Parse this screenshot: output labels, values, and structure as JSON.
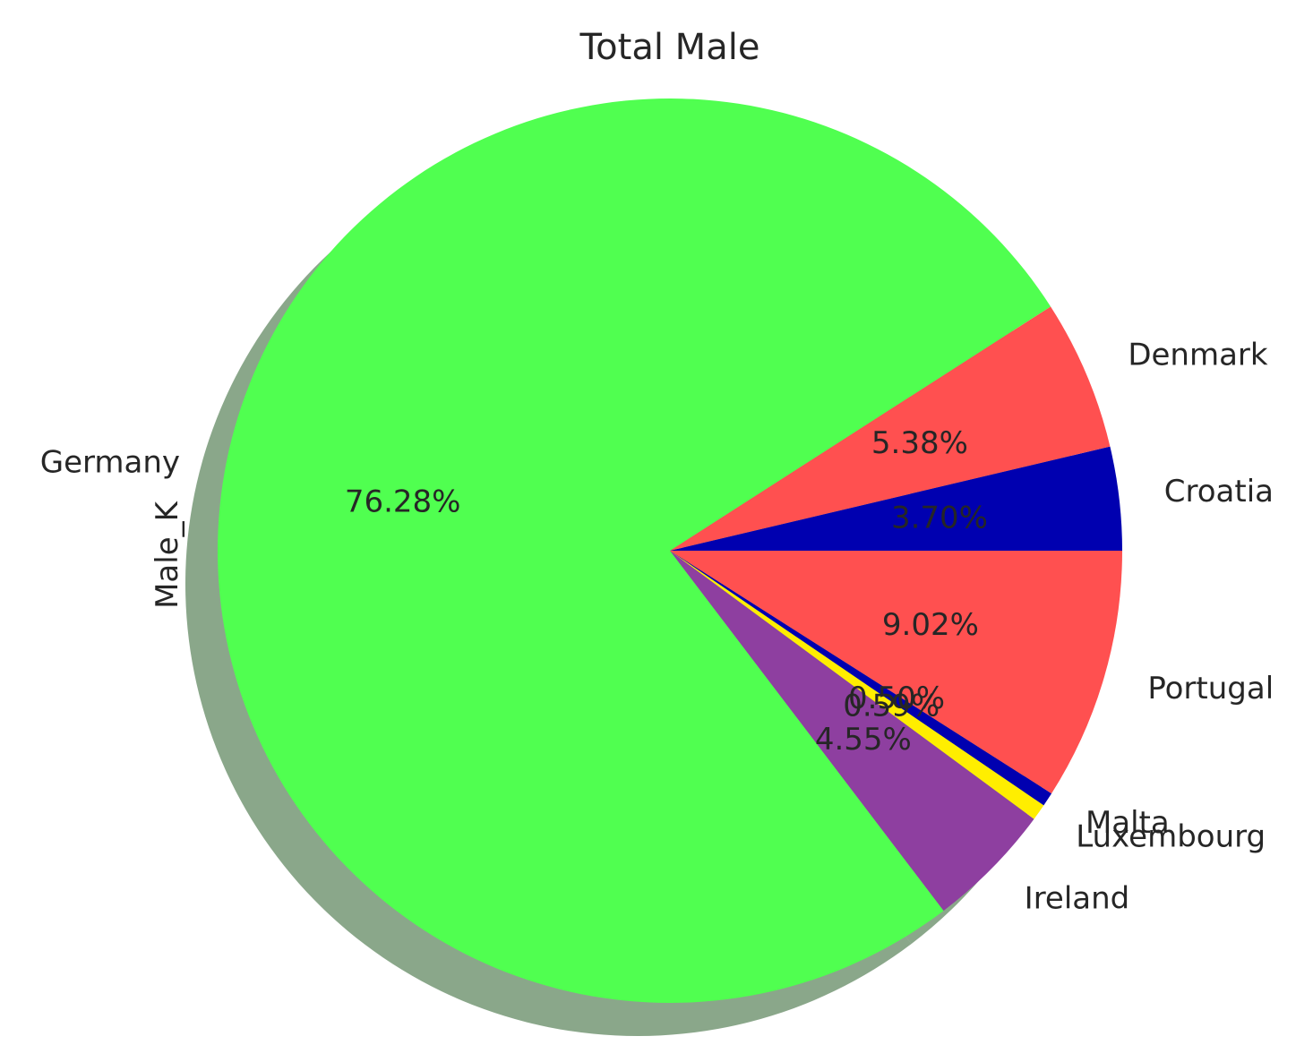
{
  "chart_data": {
    "type": "pie",
    "title": "Total Male",
    "ylabel": "Male_K",
    "startangle_deg": 0,
    "direction": "counterclockwise",
    "shadow": true,
    "slices": [
      {
        "label": "Croatia",
        "percent": 3.7,
        "pct_text": "3.70%",
        "color": "#0000b0"
      },
      {
        "label": "Denmark",
        "percent": 5.38,
        "pct_text": "5.38%",
        "color": "#ff5050"
      },
      {
        "label": "Germany",
        "percent": 76.28,
        "pct_text": "76.28%",
        "color": "#50ff50"
      },
      {
        "label": "Ireland",
        "percent": 4.55,
        "pct_text": "4.55%",
        "color": "#8e3fa0"
      },
      {
        "label": "Luxembourg",
        "percent": 0.59,
        "pct_text": "0.59%",
        "color": "#ffee00"
      },
      {
        "label": "Malta",
        "percent": 0.5,
        "pct_text": "0.50%",
        "color": "#0000b0"
      },
      {
        "label": "Portugal",
        "percent": 9.02,
        "pct_text": "9.02%",
        "color": "#ff5050"
      }
    ]
  }
}
